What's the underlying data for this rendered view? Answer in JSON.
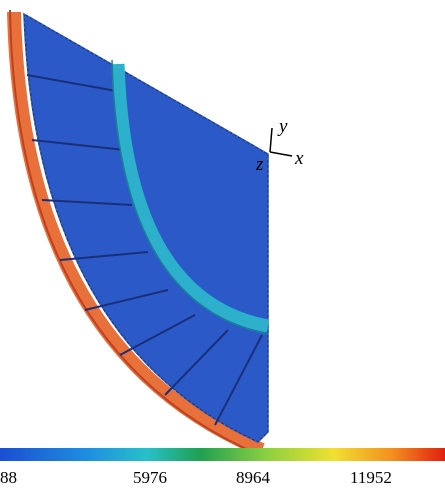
{
  "axes": {
    "y": "y",
    "z": "z",
    "x": "x"
  },
  "colorbar": {
    "labels": [
      "88",
      "5976",
      "8964",
      "11952"
    ]
  }
}
